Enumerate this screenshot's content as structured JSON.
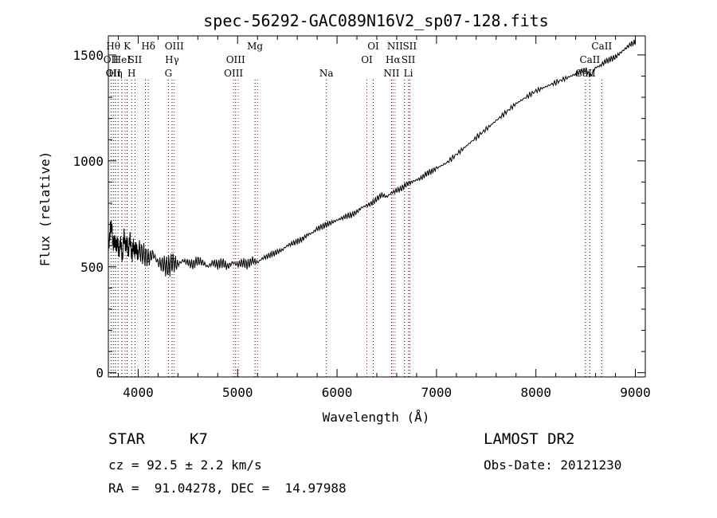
{
  "chart_data": {
    "type": "line",
    "title": "spec-56292-GAC089N16V2_sp07-128.fits",
    "xlabel": "Wavelength (Å)",
    "ylabel": "Flux (relative)",
    "xlim": [
      3700,
      9100
    ],
    "ylim": [
      -20,
      1590
    ],
    "xticks": [
      4000,
      5000,
      6000,
      7000,
      8000,
      9000
    ],
    "yticks": [
      0,
      500,
      1000,
      1500
    ],
    "grid": false,
    "series": [
      {
        "x": [
          3700,
          3720,
          3740,
          3760,
          3780,
          3800,
          3820,
          3840,
          3860,
          3880,
          3900,
          3920,
          3940,
          3960,
          3980,
          4000,
          4050,
          4100,
          4150,
          4200,
          4250,
          4300,
          4350,
          4400,
          4450,
          4500,
          4550,
          4600,
          4650,
          4700,
          4750,
          4800,
          4850,
          4900,
          4950,
          5000,
          5050,
          5100,
          5150,
          5200,
          5250,
          5300,
          5350,
          5400,
          5450,
          5500,
          5550,
          5600,
          5650,
          5700,
          5750,
          5800,
          5850,
          5900,
          5950,
          6000,
          6050,
          6100,
          6150,
          6200,
          6250,
          6300,
          6350,
          6400,
          6450,
          6500,
          6550,
          6600,
          6650,
          6700,
          6750,
          6800,
          6850,
          6900,
          6950,
          7000,
          7100,
          7200,
          7300,
          7400,
          7500,
          7600,
          7700,
          7800,
          7900,
          8000,
          8100,
          8200,
          8300,
          8400,
          8450,
          8500,
          8550,
          8600,
          8650,
          8700,
          8750,
          8800,
          8850,
          8900,
          8950,
          9000
        ],
        "values": [
          560,
          700,
          650,
          600,
          620,
          580,
          610,
          560,
          640,
          600,
          590,
          620,
          560,
          600,
          570,
          580,
          560,
          540,
          560,
          520,
          510,
          500,
          520,
          510,
          530,
          520,
          510,
          530,
          520,
          500,
          520,
          510,
          520,
          500,
          520,
          510,
          520,
          510,
          530,
          520,
          540,
          550,
          560,
          570,
          580,
          600,
          610,
          620,
          630,
          650,
          660,
          680,
          690,
          700,
          710,
          720,
          730,
          740,
          745,
          760,
          780,
          790,
          800,
          820,
          840,
          830,
          850,
          860,
          870,
          890,
          900,
          910,
          920,
          940,
          950,
          965,
          990,
          1030,
          1070,
          1110,
          1150,
          1190,
          1230,
          1270,
          1300,
          1330,
          1350,
          1370,
          1390,
          1410,
          1420,
          1430,
          1400,
          1440,
          1450,
          1470,
          1480,
          1490,
          1510,
          1530,
          1550,
          1560
        ]
      }
    ],
    "lines": [
      {
        "wave": 3727,
        "labels": [
          "OII"
        ],
        "row": [
          1
        ],
        "color": "black"
      },
      {
        "wave": 3750,
        "labels": [
          "Hθ",
          "OII"
        ],
        "row": [
          0,
          2
        ],
        "color": "black"
      },
      {
        "wave": 3771,
        "labels": [
          "Hη"
        ],
        "row": [
          2
        ],
        "color": "black"
      },
      {
        "wave": 3798,
        "labels": [],
        "row": [],
        "color": "black"
      },
      {
        "wave": 3835,
        "labels": [
          "HeI"
        ],
        "row": [
          1
        ],
        "color": "black"
      },
      {
        "wave": 3869,
        "labels": [],
        "row": [],
        "color": "red"
      },
      {
        "wave": 3889,
        "labels": [
          "K"
        ],
        "row": [
          0
        ],
        "color": "black"
      },
      {
        "wave": 3934,
        "labels": [
          "H"
        ],
        "row": [
          2
        ],
        "color": "black"
      },
      {
        "wave": 3968,
        "labels": [
          "SII"
        ],
        "row": [
          1
        ],
        "color": "black"
      },
      {
        "wave": 4072,
        "labels": [],
        "row": [],
        "color": "black"
      },
      {
        "wave": 4102,
        "labels": [
          "Hδ"
        ],
        "row": [
          0
        ],
        "color": "black"
      },
      {
        "wave": 4304,
        "labels": [
          "G"
        ],
        "row": [
          2
        ],
        "color": "black"
      },
      {
        "wave": 4341,
        "labels": [
          "Hγ"
        ],
        "row": [
          1
        ],
        "color": "black"
      },
      {
        "wave": 4363,
        "labels": [
          "OIII"
        ],
        "row": [
          0
        ],
        "color": "red"
      },
      {
        "wave": 4959,
        "labels": [
          "OIII"
        ],
        "row": [
          2
        ],
        "color": "red"
      },
      {
        "wave": 4980,
        "labels": [
          "OIII"
        ],
        "row": [
          1
        ],
        "color": "black"
      },
      {
        "wave": 5007,
        "labels": [],
        "row": [],
        "color": "red"
      },
      {
        "wave": 5175,
        "labels": [
          "Mg"
        ],
        "row": [
          0
        ],
        "color": "black"
      },
      {
        "wave": 5200,
        "labels": [],
        "row": [],
        "color": "red"
      },
      {
        "wave": 5893,
        "labels": [
          "Na"
        ],
        "row": [
          2
        ],
        "color": "black"
      },
      {
        "wave": 6300,
        "labels": [
          "OI"
        ],
        "row": [
          1
        ],
        "color": "red"
      },
      {
        "wave": 6364,
        "labels": [
          "OI"
        ],
        "row": [
          0
        ],
        "color": "black"
      },
      {
        "wave": 6548,
        "labels": [
          "NII"
        ],
        "row": [
          2
        ],
        "color": "black"
      },
      {
        "wave": 6563,
        "labels": [
          "Hα"
        ],
        "row": [
          1
        ],
        "color": "red"
      },
      {
        "wave": 6583,
        "labels": [
          "NII"
        ],
        "row": [
          0
        ],
        "color": "red"
      },
      {
        "wave": 6678,
        "labels": [],
        "row": [],
        "color": "black"
      },
      {
        "wave": 6717,
        "labels": [
          "Li",
          "SII"
        ],
        "row": [
          2,
          1
        ],
        "color": "red"
      },
      {
        "wave": 6731,
        "labels": [
          "SII"
        ],
        "row": [
          0
        ],
        "color": "black"
      },
      {
        "wave": 8498,
        "labels": [
          "CaII"
        ],
        "row": [
          2
        ],
        "color": "black"
      },
      {
        "wave": 8542,
        "labels": [
          "CaII"
        ],
        "row": [
          1
        ],
        "color": "black"
      },
      {
        "wave": 8662,
        "labels": [
          "CaII"
        ],
        "row": [
          0
        ],
        "color": "black"
      }
    ]
  },
  "info": {
    "object_class": "STAR",
    "subclass": "K7",
    "survey": "LAMOST DR2",
    "cz": "cz = 92.5 ± 2.2 km/s",
    "obs_date": "Obs-Date: 20121230",
    "coords": "RA =  91.04278, DEC =  14.97988"
  }
}
